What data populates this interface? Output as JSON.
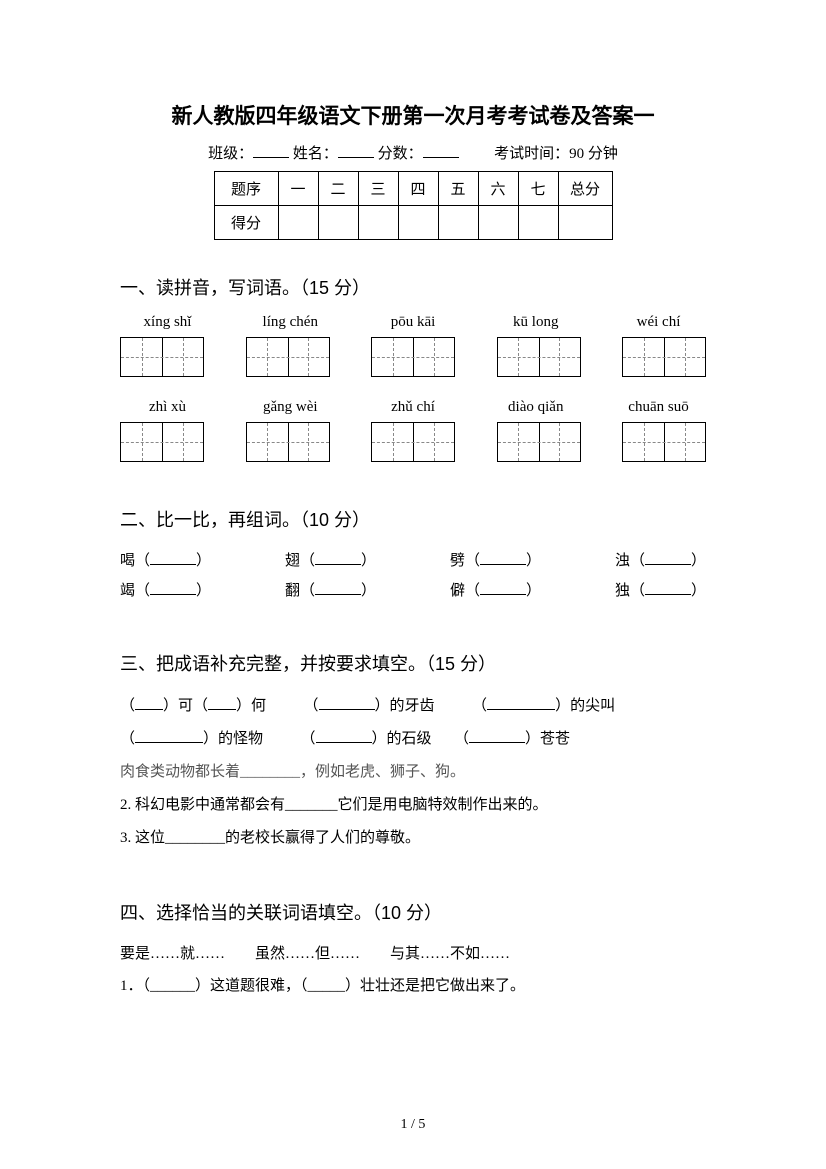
{
  "title": "新人教版四年级语文下册第一次月考考试卷及答案一",
  "meta": {
    "class_label": "班级：",
    "name_label": "姓名：",
    "score_label": "分数：",
    "exam_time": "考试时间：90 分钟"
  },
  "score_table": {
    "row1_label": "题序",
    "cols": [
      "一",
      "二",
      "三",
      "四",
      "五",
      "六",
      "七"
    ],
    "total_label": "总分",
    "row2_label": "得分"
  },
  "q1": {
    "head": "一、读拼音，写词语。（15 分）",
    "row1_pinyin": [
      "xíng shǐ",
      "líng chén",
      "pōu kāi",
      "kū long",
      "wéi chí"
    ],
    "row2_pinyin": [
      "zhì xù",
      "gǎng wèi",
      "zhǔ chí",
      "diào qiǎn",
      "chuān suō"
    ]
  },
  "q2": {
    "head": "二、比一比，再组词。（10 分）",
    "pairs": [
      [
        "喝",
        "竭"
      ],
      [
        "翅",
        "翻"
      ],
      [
        "劈",
        "僻"
      ],
      [
        "浊",
        "独"
      ]
    ]
  },
  "q3": {
    "head": "三、把成语补充完整，并按要求填空。（15 分）",
    "line1_parts": [
      "（",
      "）可（",
      "）何",
      "（",
      "）的牙齿",
      "（",
      "）的尖叫"
    ],
    "line2_parts": [
      "（",
      "）的怪物",
      "（",
      "）的石级",
      "（",
      "）苍苍"
    ],
    "line3": "肉食类动物都长着________，例如老虎、狮子、狗。",
    "line4": "2. 科幻电影中通常都会有_______它们是用电脑特效制作出来的。",
    "line5": "3. 这位________的老校长赢得了人们的尊敬。"
  },
  "q4": {
    "head": "四、选择恰当的关联词语填空。（10 分）",
    "options": "要是……就……　　虽然……但……　　与其……不如……",
    "item1": "1．（______）这道题很难，（_____）壮壮还是把它做出来了。"
  },
  "pager": "1 / 5",
  "colors": {
    "text": "#000000",
    "bg": "#ffffff",
    "gray": "#555555"
  }
}
